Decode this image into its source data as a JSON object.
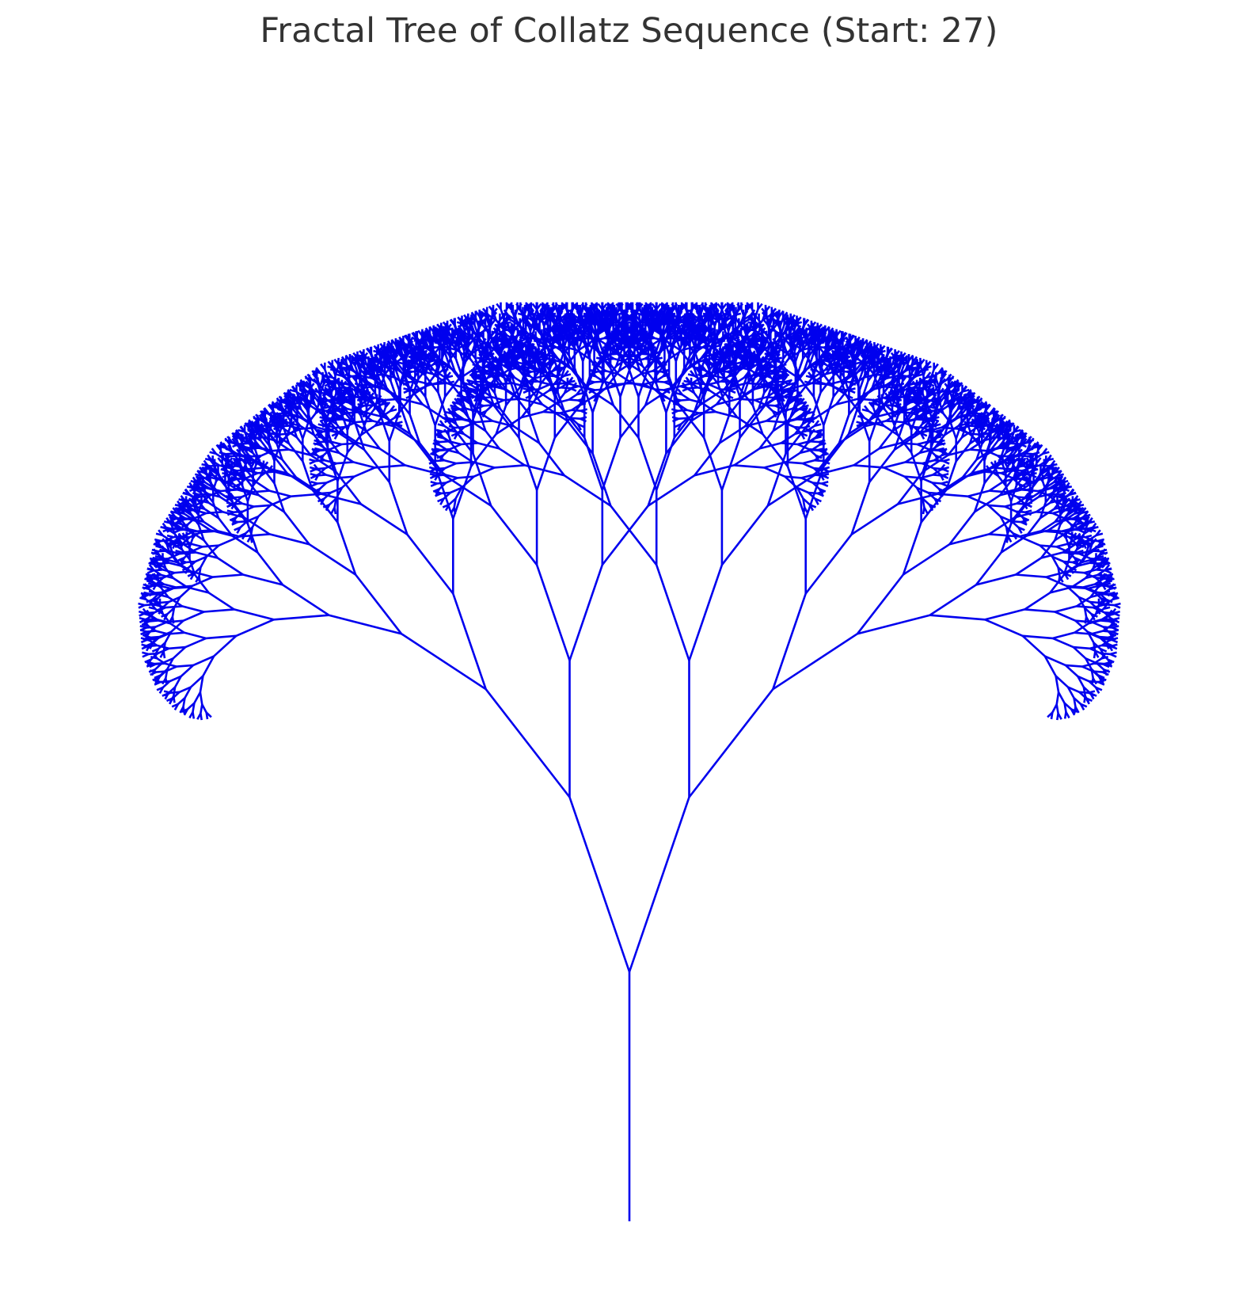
{
  "figure": {
    "title": "Fractal Tree of Collatz Sequence (Start: 27)"
  },
  "tree": {
    "start_value": 27,
    "branch_color": "#0000ee",
    "background_color": "#ffffff",
    "title_color": "#333333",
    "branch_rule": "binary",
    "depth_levels": 13
  }
}
